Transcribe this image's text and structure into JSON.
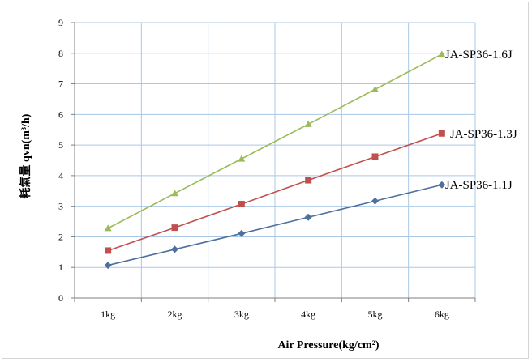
{
  "chart_data": {
    "type": "line",
    "categories": [
      "1kg",
      "2kg",
      "3kg",
      "4kg",
      "5kg",
      "6kg"
    ],
    "ylim": [
      0,
      9
    ],
    "yticks": [
      0,
      1,
      2,
      3,
      4,
      5,
      6,
      7,
      8,
      9
    ],
    "grid": true,
    "xlabel": "Air Pressure(kg/cm²)",
    "ylabel": "耗氣量 qvn(m³/h)",
    "legend": "inline-right",
    "series": [
      {
        "name": "JA-SP36-1.6J",
        "values": [
          2.28,
          3.42,
          4.55,
          5.68,
          6.82,
          7.97
        ],
        "color": "#9bbb59",
        "marker": "triangle"
      },
      {
        "name": "JA-SP36-1.3J",
        "values": [
          1.55,
          2.3,
          3.07,
          3.85,
          4.62,
          5.38
        ],
        "color": "#c0504d",
        "marker": "square"
      },
      {
        "name": "JA-SP36-1.1J",
        "values": [
          1.07,
          1.59,
          2.11,
          2.64,
          3.17,
          3.7
        ],
        "color": "#4f6f9f",
        "marker": "diamond"
      }
    ]
  }
}
